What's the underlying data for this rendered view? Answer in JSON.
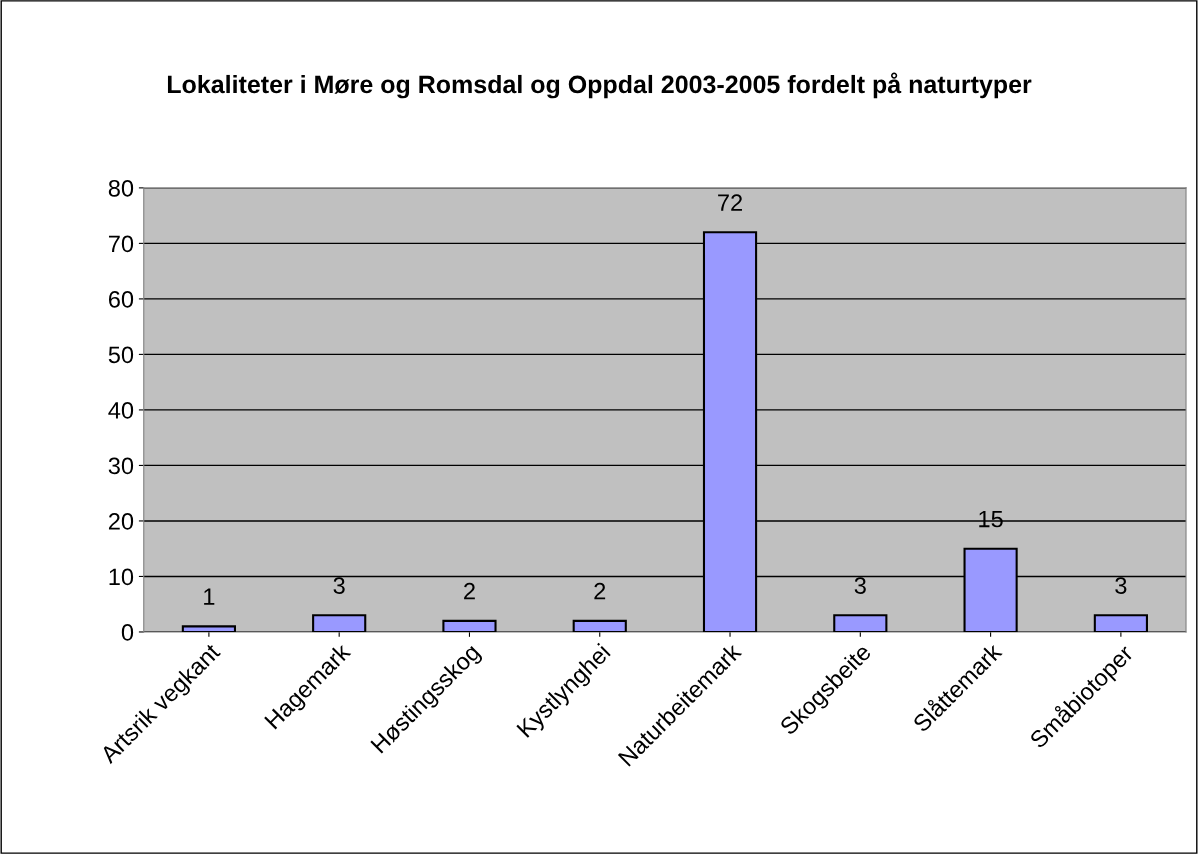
{
  "chart_data": {
    "type": "bar",
    "title": "Lokaliteter i Møre og Romsdal og Oppdal 2003-2005 fordelt på naturtyper",
    "categories": [
      "Artsrik vegkant",
      "Hagemark",
      "Høstingsskog",
      "Kystlynghei",
      "Naturbeitemark",
      "Skogsbeite",
      "Slåttemark",
      "Småbiotoper"
    ],
    "values": [
      1,
      3,
      2,
      2,
      72,
      3,
      15,
      3
    ],
    "color": "#9999ff",
    "ylim": [
      0,
      80
    ],
    "yticks": [
      0,
      10,
      20,
      30,
      40,
      50,
      60,
      70,
      80
    ],
    "grid": "y",
    "data_labels": true,
    "legend": false
  }
}
